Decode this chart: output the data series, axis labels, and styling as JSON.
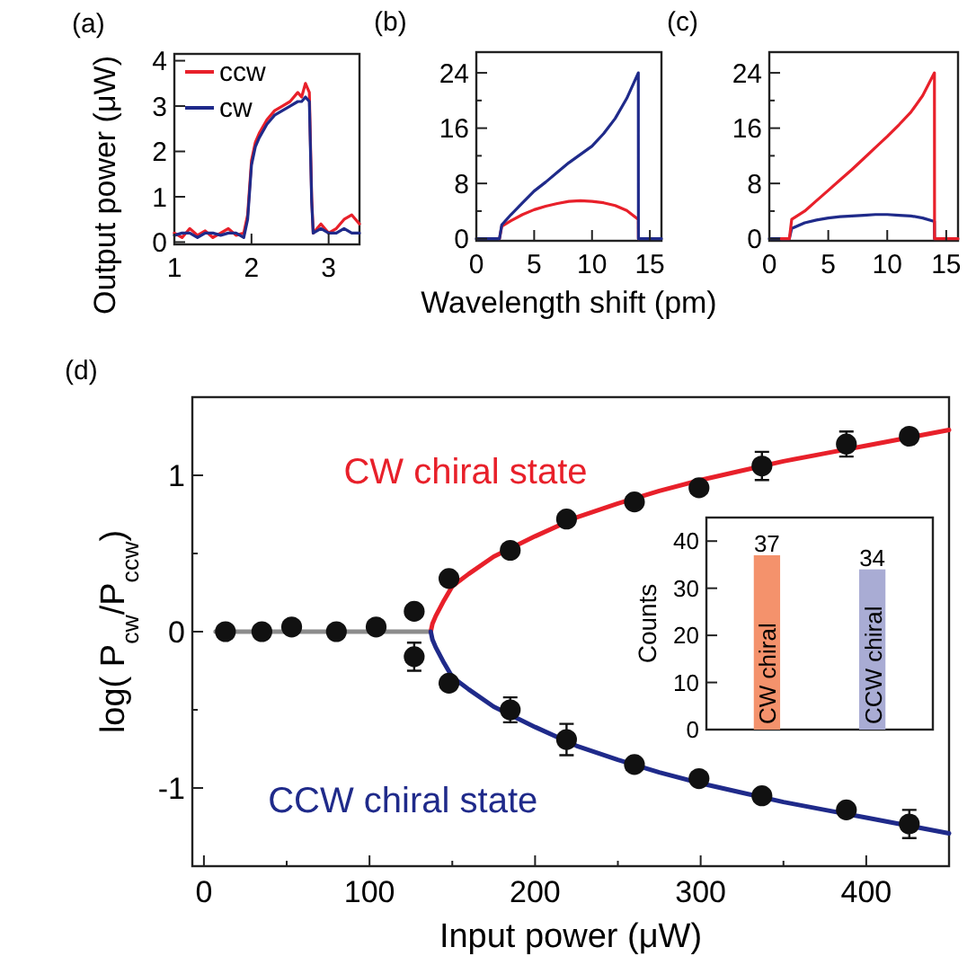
{
  "chart_data": [
    {
      "type": "line",
      "title": "(a)",
      "ylabel": "Output power (μW)",
      "x": [
        1,
        1.1,
        1.2,
        1.3,
        1.4,
        1.5,
        1.6,
        1.7,
        1.8,
        1.9,
        1.95,
        2.0,
        2.05,
        2.1,
        2.2,
        2.3,
        2.4,
        2.5,
        2.6,
        2.65,
        2.7,
        2.75,
        2.78,
        2.8,
        2.9,
        3.0,
        3.1,
        3.2,
        3.3,
        3.4
      ],
      "xlim": [
        1,
        3.4
      ],
      "xticks": [
        1,
        2,
        3
      ],
      "ylim": [
        -0.05,
        4.15
      ],
      "yticks": [
        0,
        1,
        2,
        3,
        4
      ],
      "legend": "top left",
      "series": [
        {
          "name": "ccw",
          "color": "#e8202a",
          "values": [
            0.2,
            0.1,
            0.3,
            0.15,
            0.25,
            0.1,
            0.2,
            0.3,
            0.15,
            0.2,
            0.6,
            1.8,
            2.2,
            2.4,
            2.7,
            2.9,
            3.0,
            3.1,
            3.3,
            3.2,
            3.5,
            3.3,
            1.0,
            0.2,
            0.4,
            0.2,
            0.3,
            0.5,
            0.6,
            0.4
          ]
        },
        {
          "name": "cw",
          "color": "#1f2a8a",
          "values": [
            0.15,
            0.2,
            0.2,
            0.1,
            0.2,
            0.2,
            0.15,
            0.2,
            0.2,
            0.1,
            0.5,
            1.7,
            2.1,
            2.3,
            2.6,
            2.8,
            2.9,
            3.0,
            3.1,
            3.1,
            3.2,
            3.1,
            0.9,
            0.2,
            0.3,
            0.2,
            0.2,
            0.3,
            0.2,
            0.2
          ]
        }
      ]
    },
    {
      "type": "line",
      "title": "(b)",
      "xlabel": "Wavelength shift (pm)",
      "x": [
        0,
        1,
        2,
        2.2,
        3,
        4,
        5,
        6,
        7,
        8,
        9,
        10,
        11,
        12,
        13,
        14,
        14.01,
        15,
        16
      ],
      "xlim": [
        0,
        16
      ],
      "xticks": [
        0,
        5,
        10,
        15
      ],
      "ylim": [
        -0.3,
        27
      ],
      "yticks": [
        0,
        {
          "value": 4,
          "label": null
        },
        8,
        {
          "value": 12,
          "label": null
        },
        16,
        {
          "value": 20,
          "label": null
        },
        24
      ],
      "series": [
        {
          "color": "#e8202a",
          "values": [
            null,
            null,
            0,
            1.8,
            2.6,
            3.5,
            4.2,
            4.7,
            5.1,
            5.4,
            5.5,
            5.4,
            5.2,
            4.8,
            4.1,
            2.8,
            0,
            null,
            null
          ]
        },
        {
          "color": "#1f2a8a",
          "values": [
            0,
            0,
            0,
            2,
            3.5,
            5.2,
            6.9,
            8.2,
            9.6,
            11,
            12.2,
            13.4,
            15.2,
            17.4,
            20.3,
            24,
            0,
            0,
            0
          ]
        }
      ]
    },
    {
      "type": "line",
      "title": "(c)",
      "x": [
        0,
        1,
        1.7,
        1.9,
        3,
        4,
        5,
        6,
        7,
        8,
        9,
        10,
        11,
        12,
        13,
        14,
        14.01,
        15,
        16
      ],
      "xlim": [
        0,
        16
      ],
      "xticks": [
        0,
        5,
        10,
        15
      ],
      "ylim": [
        -0.3,
        27
      ],
      "yticks": [
        0,
        {
          "value": 4,
          "label": null
        },
        8,
        {
          "value": 12,
          "label": null
        },
        16,
        {
          "value": 20,
          "label": null
        },
        24
      ],
      "series": [
        {
          "color": "#1f2a8a",
          "values": [
            0,
            0,
            0,
            1.5,
            2.3,
            2.7,
            3.0,
            3.2,
            3.3,
            3.4,
            3.5,
            3.5,
            3.4,
            3.3,
            3.0,
            2.5,
            0,
            null,
            null
          ]
        },
        {
          "color": "#e8202a",
          "values": [
            null,
            0,
            0,
            2.8,
            4,
            5.5,
            7,
            8.5,
            10,
            11.6,
            13.2,
            14.8,
            16.5,
            18.3,
            20.7,
            24,
            0,
            0,
            0
          ]
        }
      ]
    },
    {
      "type": "scatter",
      "title": "(d)",
      "xlabel": "Input power (μW)",
      "ylabel": "log( P$_{cw}$/P$_{ccw}$)",
      "xlim": [
        -7,
        450
      ],
      "xticks": [
        0,
        {
          "value": 50,
          "label": null
        },
        100,
        {
          "value": 150,
          "label": null
        },
        200,
        {
          "value": 250,
          "label": null
        },
        300,
        {
          "value": 350,
          "label": null
        },
        400
      ],
      "ylim": [
        -1.5,
        1.5
      ],
      "yticks": [
        -1,
        {
          "value": -0.5,
          "label": null
        },
        0,
        {
          "value": 0.5,
          "label": null
        },
        1
      ],
      "series": [
        {
          "type": "line",
          "color": "#8c8c8c",
          "x": [
            7,
            137
          ],
          "values": [
            0,
            0
          ]
        },
        {
          "type": "line",
          "name": "CW chiral state",
          "color": "#e8202a",
          "x": [
            137,
            138,
            140,
            145,
            150,
            160,
            175,
            200,
            225,
            250,
            275,
            300,
            325,
            350,
            375,
            400,
            425,
            450
          ],
          "values": [
            0,
            0.05,
            0.1,
            0.2,
            0.29,
            0.37,
            0.48,
            0.61,
            0.73,
            0.82,
            0.9,
            0.97,
            1.03,
            1.09,
            1.14,
            1.19,
            1.24,
            1.29
          ]
        },
        {
          "type": "line",
          "name": "CCW chiral state",
          "color": "#1f2a8a",
          "x": [
            137,
            138,
            140,
            145,
            150,
            160,
            175,
            200,
            225,
            250,
            275,
            300,
            325,
            350,
            375,
            400,
            425,
            450
          ],
          "values": [
            0,
            -0.05,
            -0.1,
            -0.2,
            -0.29,
            -0.37,
            -0.48,
            -0.61,
            -0.73,
            -0.82,
            -0.9,
            -0.97,
            -1.03,
            -1.09,
            -1.14,
            -1.19,
            -1.24,
            -1.29
          ]
        },
        {
          "type": "scatter",
          "color": "#111111",
          "marker": "circle",
          "x": [
            13,
            35,
            53,
            80,
            104,
            127,
            127,
            148,
            148,
            185,
            185,
            219,
            219,
            260,
            260,
            299,
            299,
            337,
            337,
            388,
            388,
            426,
            426
          ],
          "values": [
            0,
            0,
            0.03,
            0,
            0.03,
            0.13,
            -0.16,
            0.34,
            -0.33,
            0.52,
            -0.5,
            0.72,
            -0.69,
            0.83,
            -0.85,
            0.92,
            -0.94,
            1.06,
            -1.05,
            1.2,
            -1.14,
            1.25,
            -1.23
          ],
          "errors": [
            null,
            null,
            null,
            null,
            null,
            null,
            0.09,
            null,
            null,
            null,
            0.08,
            null,
            0.1,
            null,
            null,
            null,
            null,
            0.09,
            null,
            0.08,
            null,
            null,
            0.09
          ]
        }
      ]
    },
    {
      "type": "bar",
      "ylabel": "Counts",
      "categories": [
        "CW chiral",
        "CCW chiral"
      ],
      "values": [
        37,
        34
      ],
      "colors": [
        "#f4926c",
        "#a9acd4"
      ],
      "data_labels": true,
      "ylim": [
        0,
        45
      ],
      "yticks": [
        0,
        10,
        20,
        30,
        40
      ]
    }
  ]
}
